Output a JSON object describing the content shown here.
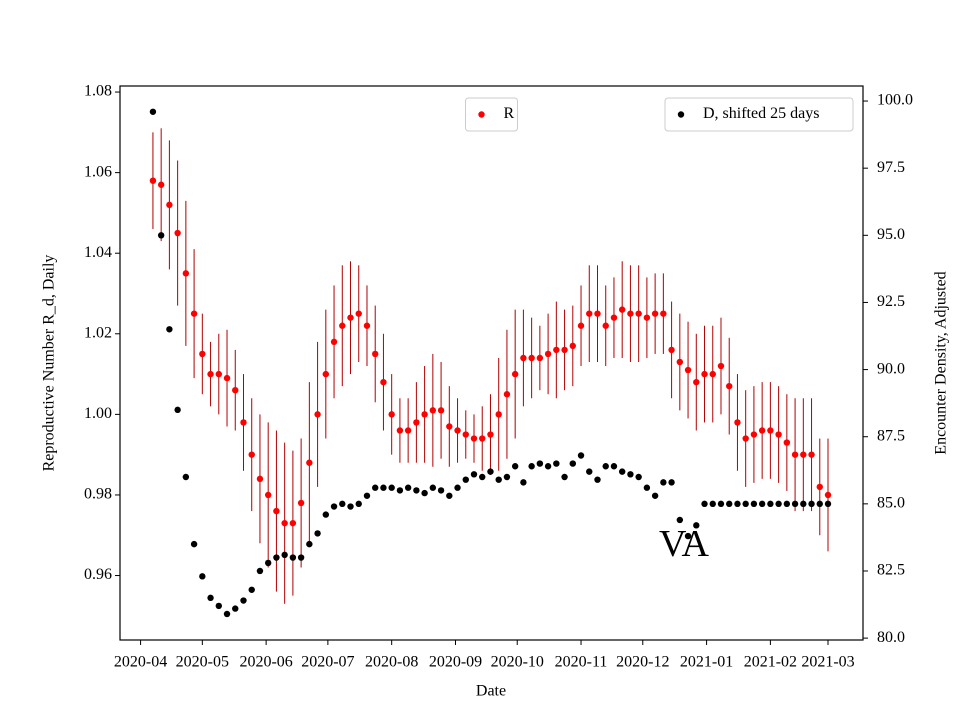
{
  "chart_data": {
    "type": "scatter",
    "xlabel": "Date",
    "ylabel": "Reproductive Number R_d, Daily",
    "y2label": "Encounter Density, Adjusted",
    "xlim": [
      "2020-03-22",
      "2021-03-18"
    ],
    "xticks": [
      {
        "value": "2020-04-01",
        "label": "2020-04"
      },
      {
        "value": "2020-05-01",
        "label": "2020-05"
      },
      {
        "value": "2020-06-01",
        "label": "2020-06"
      },
      {
        "value": "2020-07-01",
        "label": "2020-07"
      },
      {
        "value": "2020-08-01",
        "label": "2020-08"
      },
      {
        "value": "2020-09-01",
        "label": "2020-09"
      },
      {
        "value": "2020-10-01",
        "label": "2020-10"
      },
      {
        "value": "2020-11-01",
        "label": "2020-11"
      },
      {
        "value": "2020-12-01",
        "label": "2020-12"
      },
      {
        "value": "2021-01-01",
        "label": "2021-01"
      },
      {
        "value": "2021-02-01",
        "label": "2021-02"
      },
      {
        "value": "2021-03-01",
        "label": "2021-03"
      }
    ],
    "ylim": [
      0.944,
      1.0815
    ],
    "yticks": [
      0.96,
      0.98,
      {
        "value": 1,
        "label": "1.00"
      },
      1.02,
      1.04,
      1.06,
      1.08
    ],
    "y2lim": [
      79.93,
      100.56
    ],
    "y2ticks": [
      {
        "value": 80,
        "label": "80.0"
      },
      82.5,
      {
        "value": 85,
        "label": "85.0"
      },
      87.5,
      {
        "value": 90,
        "label": "90.0"
      },
      92.5,
      {
        "value": 95,
        "label": "95.0"
      },
      97.5,
      {
        "value": 100,
        "label": "100.0"
      }
    ],
    "ylabel_color": "#ff0000",
    "x": [
      "2020-04-07",
      "2020-04-11",
      "2020-04-15",
      "2020-04-19",
      "2020-04-23",
      "2020-04-27",
      "2020-05-01",
      "2020-05-05",
      "2020-05-09",
      "2020-05-13",
      "2020-05-17",
      "2020-05-21",
      "2020-05-25",
      "2020-05-29",
      "2020-06-02",
      "2020-06-06",
      "2020-06-10",
      "2020-06-14",
      "2020-06-18",
      "2020-06-22",
      "2020-06-26",
      "2020-06-30",
      "2020-07-04",
      "2020-07-08",
      "2020-07-12",
      "2020-07-16",
      "2020-07-20",
      "2020-07-24",
      "2020-07-28",
      "2020-08-01",
      "2020-08-05",
      "2020-08-09",
      "2020-08-13",
      "2020-08-17",
      "2020-08-21",
      "2020-08-25",
      "2020-08-29",
      "2020-09-02",
      "2020-09-06",
      "2020-09-10",
      "2020-09-14",
      "2020-09-18",
      "2020-09-22",
      "2020-09-26",
      "2020-09-30",
      "2020-10-04",
      "2020-10-08",
      "2020-10-12",
      "2020-10-16",
      "2020-10-20",
      "2020-10-24",
      "2020-10-28",
      "2020-11-01",
      "2020-11-05",
      "2020-11-09",
      "2020-11-13",
      "2020-11-17",
      "2020-11-21",
      "2020-11-25",
      "2020-11-29",
      "2020-12-03",
      "2020-12-07",
      "2020-12-11",
      "2020-12-15",
      "2020-12-19",
      "2020-12-23",
      "2020-12-27",
      "2020-12-31",
      "2021-01-04",
      "2021-01-08",
      "2021-01-12",
      "2021-01-16",
      "2021-01-20",
      "2021-01-24",
      "2021-01-28",
      "2021-02-01",
      "2021-02-05",
      "2021-02-09",
      "2021-02-13",
      "2021-02-17",
      "2021-02-21",
      "2021-02-25",
      "2021-03-01"
    ],
    "series": [
      {
        "name": "R",
        "color": "#ff0000",
        "error_color": "#b00000",
        "legend": "upper center",
        "values": [
          1.058,
          1.057,
          1.052,
          1.045,
          1.035,
          1.025,
          1.015,
          1.01,
          1.01,
          1.009,
          1.006,
          0.998,
          0.99,
          0.984,
          0.98,
          0.976,
          0.973,
          0.973,
          0.978,
          0.988,
          1.0,
          1.01,
          1.018,
          1.022,
          1.024,
          1.025,
          1.022,
          1.015,
          1.008,
          1.0,
          0.996,
          0.996,
          0.998,
          1.0,
          1.001,
          1.001,
          0.997,
          0.996,
          0.995,
          0.994,
          0.994,
          0.995,
          1.0,
          1.005,
          1.01,
          1.014,
          1.014,
          1.014,
          1.015,
          1.016,
          1.016,
          1.017,
          1.022,
          1.025,
          1.025,
          1.022,
          1.024,
          1.026,
          1.025,
          1.025,
          1.024,
          1.025,
          1.025,
          1.016,
          1.013,
          1.011,
          1.008,
          1.01,
          1.01,
          1.012,
          1.007,
          0.998,
          0.994,
          0.995,
          0.996,
          0.996,
          0.995,
          0.993,
          0.99,
          0.99,
          0.99,
          0.982,
          0.98
        ],
        "errors": [
          0.012,
          0.014,
          0.016,
          0.018,
          0.018,
          0.016,
          0.01,
          0.008,
          0.01,
          0.012,
          0.01,
          0.012,
          0.014,
          0.016,
          0.018,
          0.02,
          0.02,
          0.018,
          0.016,
          0.02,
          0.018,
          0.016,
          0.014,
          0.015,
          0.014,
          0.012,
          0.01,
          0.012,
          0.012,
          0.01,
          0.008,
          0.008,
          0.01,
          0.012,
          0.014,
          0.012,
          0.01,
          0.008,
          0.006,
          0.006,
          0.008,
          0.01,
          0.014,
          0.016,
          0.016,
          0.012,
          0.01,
          0.008,
          0.01,
          0.012,
          0.01,
          0.01,
          0.01,
          0.012,
          0.012,
          0.01,
          0.01,
          0.012,
          0.012,
          0.012,
          0.01,
          0.01,
          0.01,
          0.012,
          0.012,
          0.012,
          0.012,
          0.012,
          0.012,
          0.012,
          0.012,
          0.012,
          0.012,
          0.012,
          0.012,
          0.012,
          0.012,
          0.012,
          0.014,
          0.014,
          0.014,
          0.012,
          0.014
        ]
      },
      {
        "name": "D, shifted 25 days",
        "color": "#000000",
        "axis": "y2",
        "legend": "upper right",
        "values": [
          99.6,
          95.0,
          91.5,
          88.5,
          86.0,
          83.5,
          82.3,
          81.5,
          81.2,
          80.9,
          81.1,
          81.4,
          81.8,
          82.5,
          82.8,
          83.0,
          83.1,
          83.0,
          83.0,
          83.5,
          83.9,
          84.6,
          84.9,
          85.0,
          84.9,
          85.0,
          85.3,
          85.6,
          85.6,
          85.6,
          85.5,
          85.6,
          85.5,
          85.4,
          85.6,
          85.5,
          85.3,
          85.6,
          85.9,
          86.1,
          86.0,
          86.2,
          85.9,
          86.0,
          86.4,
          85.8,
          86.4,
          86.5,
          86.4,
          86.5,
          86.0,
          86.5,
          86.8,
          86.2,
          85.9,
          86.4,
          86.4,
          86.2,
          86.1,
          86.0,
          85.6,
          85.3,
          85.8,
          85.8,
          84.4,
          83.8,
          84.2,
          85.0,
          85.0,
          85.0,
          85.0,
          85.0,
          85.0,
          85.0,
          85.0,
          85.0,
          85.0,
          85.0,
          85.0,
          85.0,
          85.0,
          85.0,
          85.0
        ]
      }
    ],
    "annotations": [
      {
        "text": "VA",
        "x": "2020-12-21",
        "y": 0.967
      }
    ]
  }
}
